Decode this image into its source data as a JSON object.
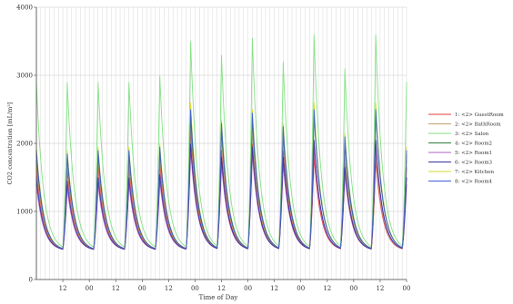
{
  "chart_data": {
    "type": "line",
    "title": "",
    "xlabel": "Time of Day",
    "ylabel": "CO2 concentration [mL/m³]",
    "ylim": [
      0,
      4000
    ],
    "yticks": [
      0,
      1000,
      2000,
      3000,
      4000
    ],
    "xlim": [
      0,
      168
    ],
    "x_unit": "hours",
    "xticks": [
      {
        "x": 12,
        "label": "12"
      },
      {
        "x": 24,
        "label": "00"
      },
      {
        "x": 36,
        "label": "12"
      },
      {
        "x": 48,
        "label": "00"
      },
      {
        "x": 60,
        "label": "12"
      },
      {
        "x": 72,
        "label": "00"
      },
      {
        "x": 84,
        "label": "12"
      },
      {
        "x": 96,
        "label": "00"
      },
      {
        "x": 108,
        "label": "12"
      },
      {
        "x": 120,
        "label": "00"
      },
      {
        "x": 132,
        "label": "12"
      },
      {
        "x": 144,
        "label": "00"
      },
      {
        "x": 156,
        "label": "12"
      },
      {
        "x": 168,
        "label": "00"
      }
    ],
    "grid": true,
    "legend_position": "right",
    "baseline": 420,
    "series": [
      {
        "name": "1:  <2> GuestRoom",
        "color": "#e33b3b",
        "peaks": [
          1650,
          1600,
          1650,
          1650,
          1700,
          2200,
          1900,
          2000,
          1900,
          1800,
          1700,
          1750,
          1650
        ]
      },
      {
        "name": "2:  <2> BathRoom",
        "color": "#c0a06b",
        "peaks": [
          1750,
          1700,
          1750,
          1750,
          1800,
          2300,
          2100,
          2200,
          2100,
          2000,
          1800,
          1850,
          1750
        ]
      },
      {
        "name": "3:  <2> Salon",
        "color": "#7fe07f",
        "peaks": [
          2900,
          2900,
          2900,
          2900,
          3000,
          3500,
          3300,
          3550,
          3200,
          3600,
          3100,
          3600,
          2900
        ]
      },
      {
        "name": "4:  <2> Room2",
        "color": "#2f7a3b",
        "peaks": [
          1850,
          1800,
          1850,
          1850,
          1900,
          2400,
          2200,
          2350,
          2150,
          2450,
          2000,
          2450,
          1850
        ]
      },
      {
        "name": "5:  <2> Room1",
        "color": "#b060c8",
        "peaks": [
          1400,
          1350,
          1400,
          1400,
          1450,
          1900,
          1700,
          1850,
          1700,
          1950,
          1550,
          1950,
          1400
        ]
      },
      {
        "name": "6:  <2> Room3",
        "color": "#3a2f9a",
        "peaks": [
          1500,
          1450,
          1500,
          1500,
          1550,
          2000,
          1800,
          1950,
          1800,
          2050,
          1650,
          2050,
          1500
        ]
      },
      {
        "name": "7:  <2> Kitchen",
        "color": "#d6d92a",
        "peaks": [
          1950,
          1900,
          1950,
          1950,
          2000,
          2600,
          2350,
          2500,
          2300,
          2600,
          2150,
          2600,
          1950
        ]
      },
      {
        "name": "8:  <2> Room4",
        "color": "#3d5ed6",
        "peaks": [
          1900,
          1850,
          1900,
          1900,
          1950,
          2500,
          2300,
          2450,
          2250,
          2500,
          2100,
          2500,
          1900
        ]
      }
    ]
  }
}
